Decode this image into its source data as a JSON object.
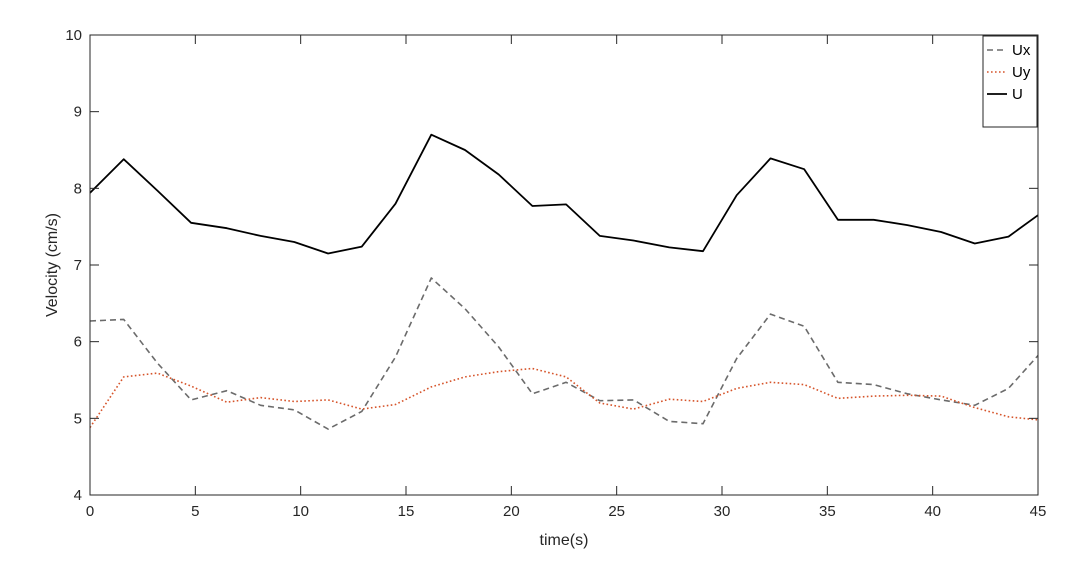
{
  "chart_data": {
    "type": "line",
    "xlabel": "time(s)",
    "ylabel": "Velocity (cm/s)",
    "xlim": [
      0,
      45
    ],
    "ylim": [
      4,
      10
    ],
    "xticks": [
      0,
      5,
      10,
      15,
      20,
      25,
      30,
      35,
      40,
      45
    ],
    "yticks": [
      4,
      5,
      6,
      7,
      8,
      9,
      10
    ],
    "grid": false,
    "legend_position": "top-right",
    "x": [
      0,
      1.6,
      3.2,
      4.8,
      6.5,
      8.1,
      9.7,
      11.3,
      12.9,
      14.5,
      16.2,
      17.8,
      19.4,
      21.0,
      22.6,
      24.2,
      25.8,
      27.5,
      29.1,
      30.7,
      32.3,
      33.9,
      35.5,
      37.2,
      38.8,
      40.4,
      42.0,
      43.6,
      45.0
    ],
    "series": [
      {
        "name": "Ux",
        "color": "#6b6b6b",
        "dash": "dashed",
        "values": [
          6.27,
          6.29,
          5.72,
          5.24,
          5.36,
          5.17,
          5.11,
          4.86,
          5.09,
          5.8,
          6.83,
          6.43,
          5.93,
          5.32,
          5.47,
          5.23,
          5.24,
          4.96,
          4.93,
          5.78,
          6.36,
          6.2,
          5.47,
          5.44,
          5.32,
          5.24,
          5.17,
          5.39,
          5.82
        ]
      },
      {
        "name": "Uy",
        "color": "#d6542a",
        "dash": "dotted",
        "values": [
          4.88,
          5.54,
          5.59,
          5.42,
          5.21,
          5.27,
          5.22,
          5.24,
          5.12,
          5.18,
          5.41,
          5.54,
          5.61,
          5.65,
          5.54,
          5.2,
          5.12,
          5.25,
          5.22,
          5.39,
          5.47,
          5.44,
          5.26,
          5.29,
          5.3,
          5.29,
          5.14,
          5.02,
          4.98
        ]
      },
      {
        "name": "U",
        "color": "#000000",
        "dash": "solid",
        "values": [
          7.94,
          8.38,
          7.97,
          7.55,
          7.48,
          7.38,
          7.3,
          7.15,
          7.24,
          7.8,
          8.7,
          8.5,
          8.18,
          7.77,
          7.79,
          7.38,
          7.32,
          7.23,
          7.18,
          7.91,
          8.39,
          8.25,
          7.59,
          7.59,
          7.52,
          7.43,
          7.28,
          7.37,
          7.65
        ]
      }
    ]
  }
}
